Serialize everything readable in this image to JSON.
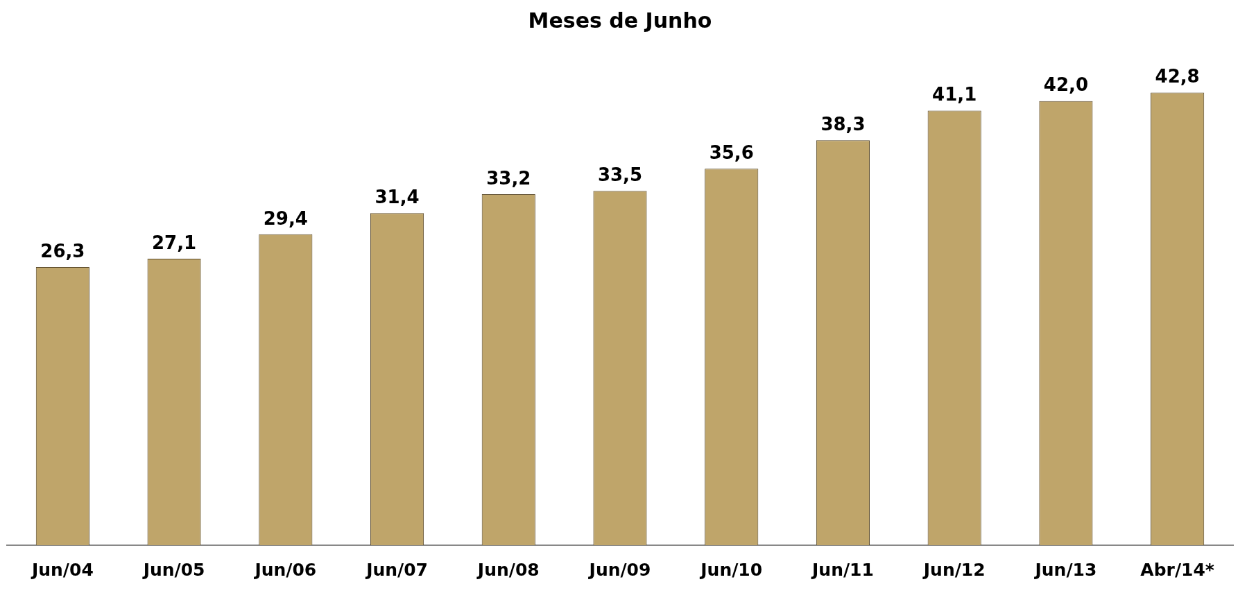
{
  "chart_data": {
    "type": "bar",
    "title": "Meses de Junho",
    "categories": [
      "Jun/04",
      "Jun/05",
      "Jun/06",
      "Jun/07",
      "Jun/08",
      "Jun/09",
      "Jun/10",
      "Jun/11",
      "Jun/12",
      "Jun/13",
      "Abr/14*"
    ],
    "values": [
      26.3,
      27.1,
      29.4,
      31.4,
      33.2,
      33.5,
      35.6,
      38.3,
      41.1,
      42.0,
      42.8
    ],
    "value_labels": [
      "26,3",
      "27,1",
      "29,4",
      "31,4",
      "33,2",
      "33,5",
      "35,6",
      "38,3",
      "41,1",
      "42,0",
      "42,8"
    ],
    "color": "#bfa56a",
    "tick_labels": "x"
  }
}
